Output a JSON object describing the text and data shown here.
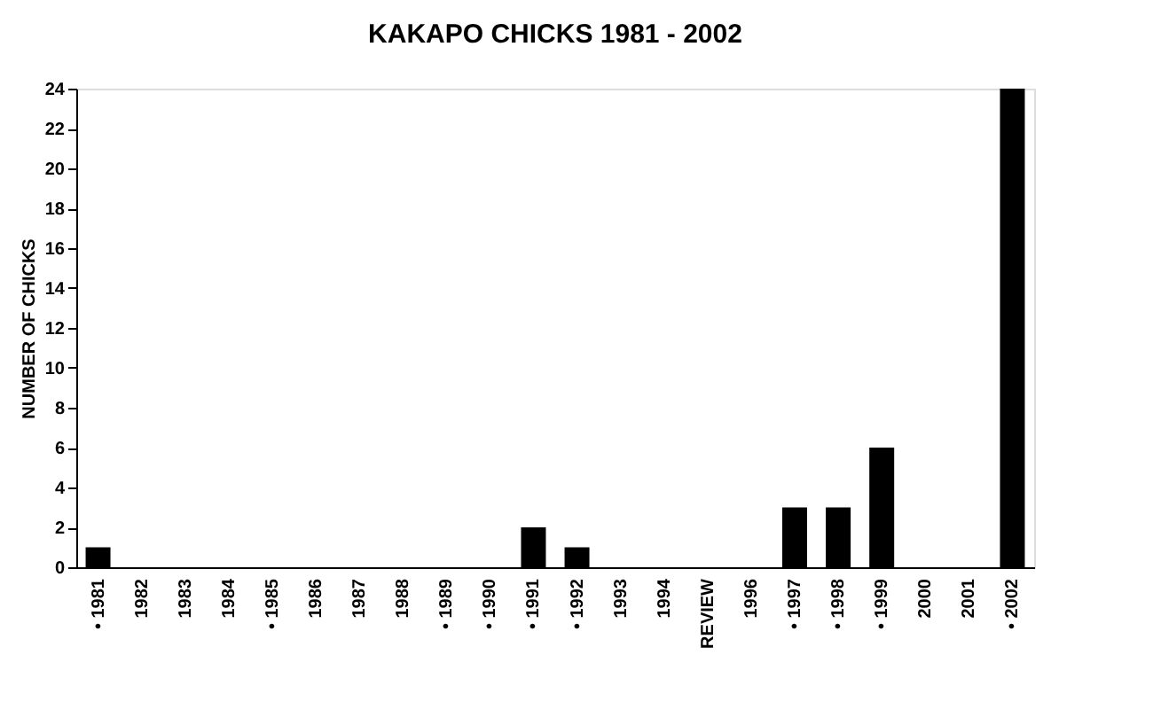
{
  "chart_data": {
    "type": "bar",
    "title": "KAKAPO CHICKS 1981 - 2002",
    "ylabel": "NUMBER OF CHICKS",
    "categories": [
      "• 1981",
      "1982",
      "1983",
      "1984",
      "• 1985",
      "1986",
      "1987",
      "1988",
      "• 1989",
      "• 1990",
      "• 1991",
      "• 1992",
      "1993",
      "1994",
      "REVIEW",
      "1996",
      "• 1997",
      "• 1998",
      "• 1999",
      "2000",
      "2001",
      "• 2002"
    ],
    "values": [
      1,
      0,
      0,
      0,
      0,
      0,
      0,
      0,
      0,
      0,
      2,
      1,
      0,
      0,
      0,
      0,
      3,
      3,
      6,
      0,
      0,
      24
    ],
    "color": "#000000",
    "ylim": [
      0,
      24
    ],
    "yticks": [
      0,
      2,
      4,
      6,
      8,
      10,
      12,
      14,
      16,
      18,
      20,
      22,
      24
    ],
    "grid": false
  }
}
